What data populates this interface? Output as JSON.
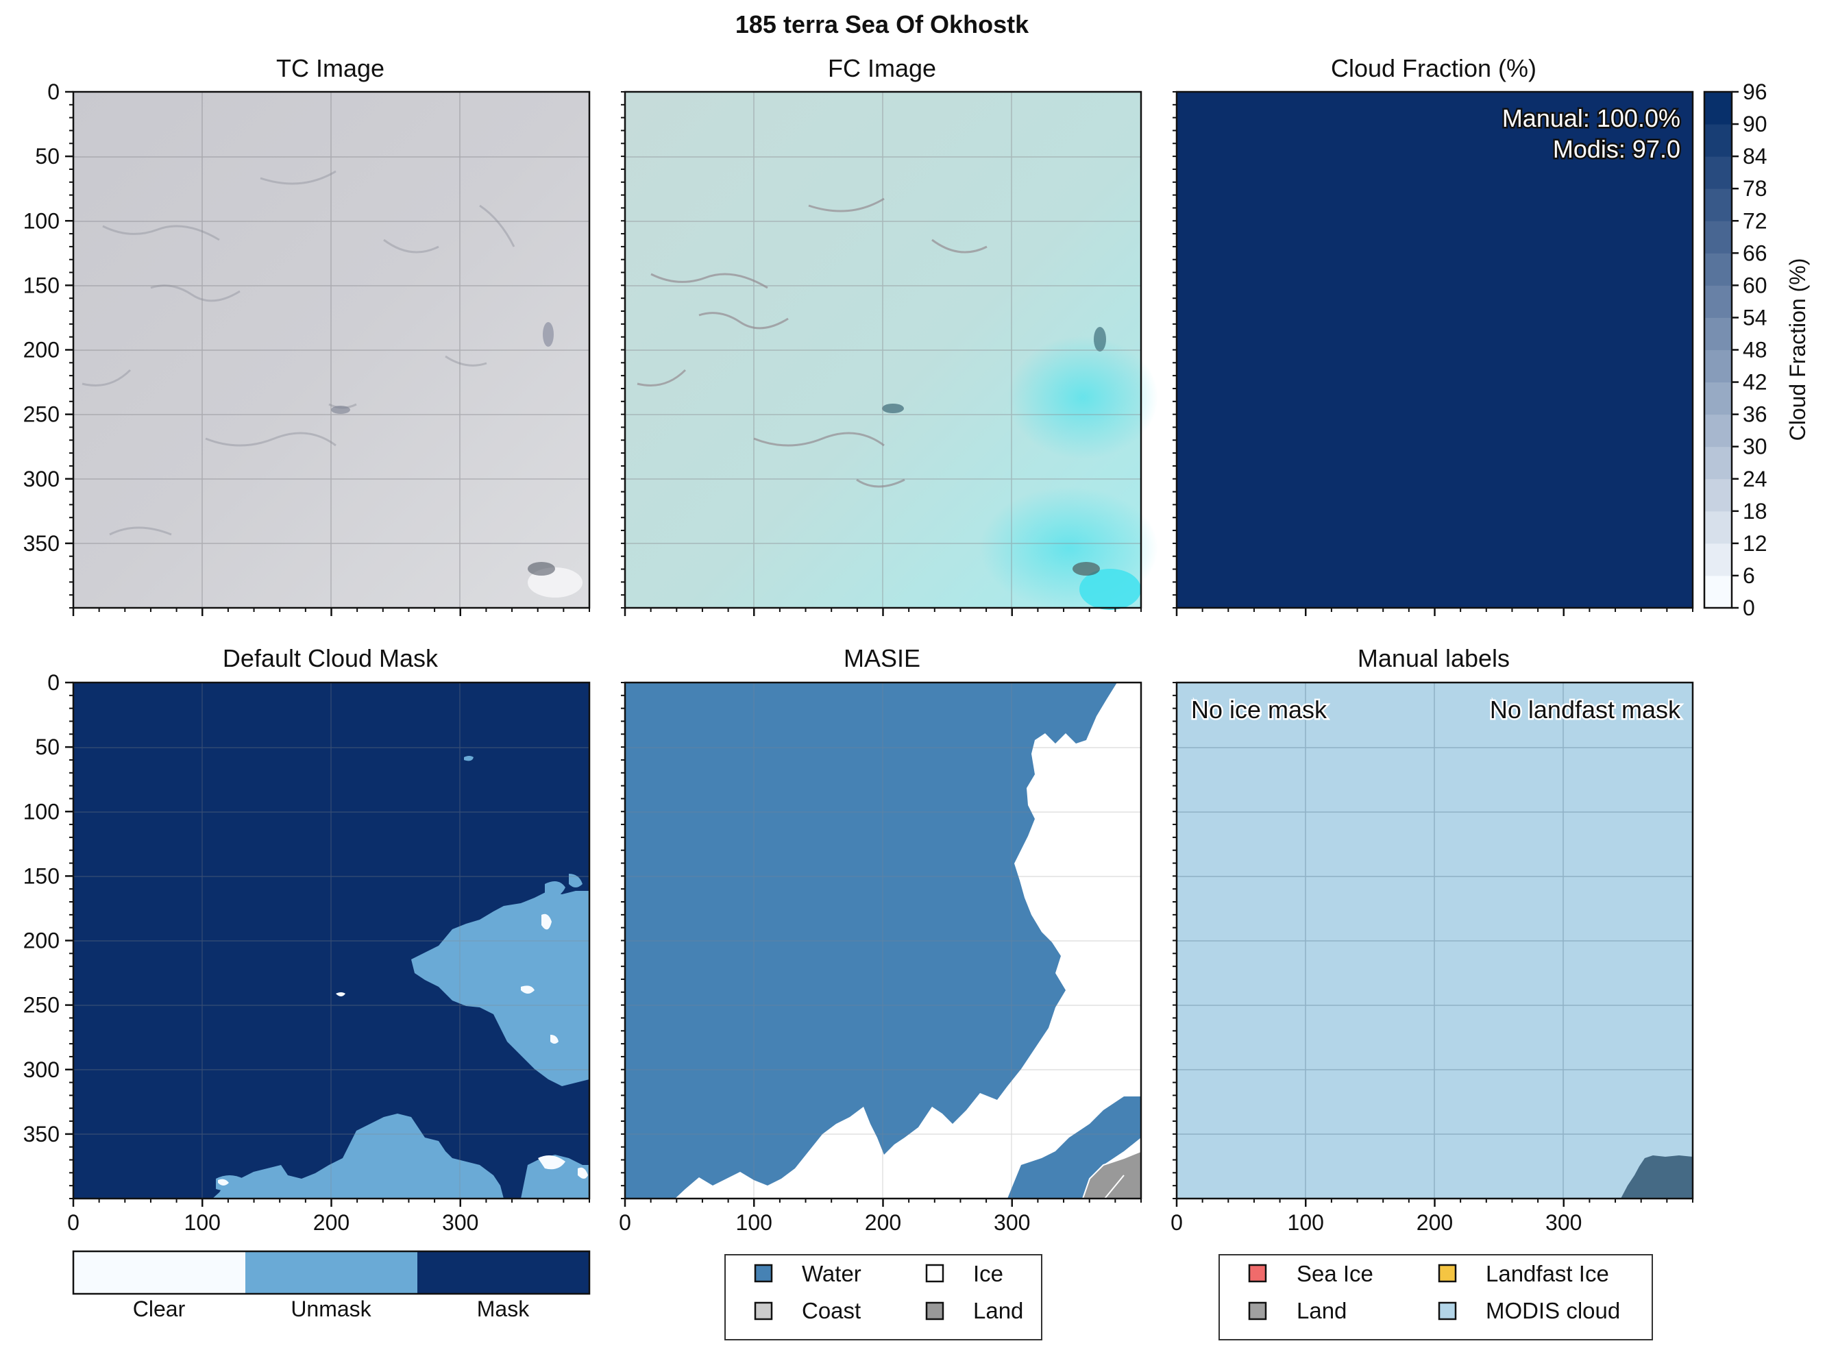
{
  "suptitle": "185 terra Sea Of Okhostk",
  "panels": {
    "tc": {
      "title": "TC Image"
    },
    "fc": {
      "title": "FC Image"
    },
    "cf": {
      "title": "Cloud Fraction (%)",
      "manual_text": "Manual: 100.0%",
      "modis_text": "Modis: 97.0",
      "colorbar_label": "Cloud Fraction (%)",
      "colorbar_ticks": [
        "0",
        "6",
        "12",
        "18",
        "24",
        "30",
        "36",
        "42",
        "48",
        "54",
        "60",
        "66",
        "72",
        "78",
        "84",
        "90",
        "96"
      ]
    },
    "dcm": {
      "title": "Default Cloud Mask",
      "legend": [
        "Clear",
        "Unmask",
        "Mask"
      ]
    },
    "masie": {
      "title": "MASIE",
      "legend": [
        "Water",
        "Ice",
        "Coast",
        "Land"
      ]
    },
    "manual": {
      "title": "Manual labels",
      "no_ice": "No ice mask",
      "no_landfast": "No landfast mask",
      "legend": [
        "Sea Ice",
        "Landfast Ice",
        "Land",
        "MODIS cloud"
      ]
    }
  },
  "axes": {
    "y_ticks": [
      "0",
      "50",
      "100",
      "150",
      "200",
      "250",
      "300",
      "350"
    ],
    "x_ticks": [
      "0",
      "100",
      "200",
      "300"
    ]
  },
  "colors": {
    "mask_navy": "#0b2e6a",
    "unmask_blue": "#6aaad6",
    "clear_white": "#f7fbff",
    "masie_water": "#4682b4",
    "masie_ice": "#ffffff",
    "masie_coast": "#cccccc",
    "masie_land": "#999999",
    "sea_ice": "#f06b6b",
    "landfast": "#f5c542",
    "land": "#a0a0a0",
    "modis_cloud": "#b3d5e8"
  },
  "chart_data": [
    {
      "type": "heatmap",
      "title": "Cloud Fraction (%)",
      "values_pct": {
        "manual": 100.0,
        "modis": 97.0
      },
      "colorbar_range": [
        0,
        96
      ],
      "colorbar_step": 6
    },
    {
      "type": "heatmap",
      "title": "Default Cloud Mask",
      "categories": [
        "Clear",
        "Unmask",
        "Mask"
      ],
      "xlim": [
        0,
        400
      ],
      "ylim": [
        400,
        0
      ]
    },
    {
      "type": "heatmap",
      "title": "MASIE",
      "categories": [
        "Water",
        "Ice",
        "Coast",
        "Land"
      ],
      "xlim": [
        0,
        400
      ],
      "ylim": [
        400,
        0
      ]
    },
    {
      "type": "heatmap",
      "title": "Manual labels",
      "categories": [
        "Sea Ice",
        "Landfast Ice",
        "Land",
        "MODIS cloud"
      ],
      "xlim": [
        0,
        400
      ],
      "ylim": [
        400,
        0
      ]
    }
  ]
}
